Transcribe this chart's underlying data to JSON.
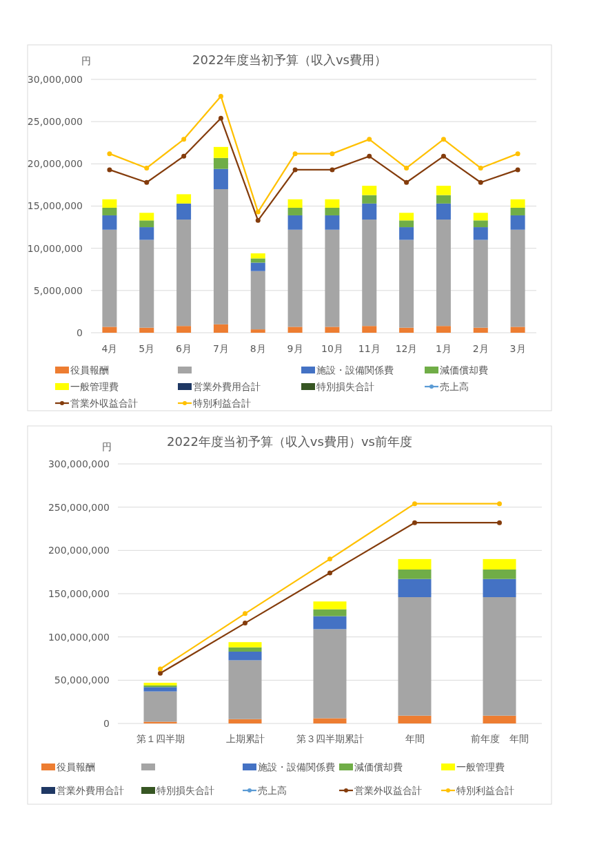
{
  "chart_data": [
    {
      "type": "bar",
      "title": "2022年度当初予算（収入vs費用）",
      "ylabel": "円",
      "stacked": true,
      "grid": "y",
      "legend": "bottom",
      "marker": "circle",
      "categories": [
        "4月",
        "5月",
        "6月",
        "7月",
        "8月",
        "9月",
        "10月",
        "11月",
        "12月",
        "1月",
        "2月",
        "3月"
      ],
      "ylim": [
        0,
        30000000
      ],
      "yticks": [
        0,
        {
          "value": 5000000,
          "label": "5,000,000"
        },
        {
          "value": 10000000,
          "label": "10,000,000"
        },
        {
          "value": 15000000,
          "label": "15,000,000"
        },
        {
          "value": 20000000,
          "label": "20,000,000"
        },
        {
          "value": 25000000,
          "label": "25,000,000"
        },
        {
          "value": 30000000,
          "label": "30,000,000"
        }
      ],
      "series": [
        {
          "name": "役員報酬",
          "color": "#ed7d31",
          "values": [
            700000,
            600000,
            800000,
            1000000,
            400000,
            700000,
            700000,
            800000,
            600000,
            800000,
            600000,
            700000
          ]
        },
        {
          "color": "#a5a5a5",
          "values": [
            11500000,
            10400000,
            12600000,
            16000000,
            6900000,
            11500000,
            11500000,
            12600000,
            10400000,
            12600000,
            10400000,
            11500000
          ]
        },
        {
          "name": "施設・設備関係費",
          "color": "#4472c4",
          "values": [
            1700000,
            1500000,
            1900000,
            2400000,
            1000000,
            1700000,
            1700000,
            1900000,
            1500000,
            1900000,
            1500000,
            1700000
          ]
        },
        {
          "name": "減価償却費",
          "color": "#70ad47",
          "values": [
            900000,
            800000,
            0,
            1300000,
            500000,
            900000,
            900000,
            1000000,
            800000,
            1000000,
            800000,
            900000
          ]
        },
        {
          "name": "一般管理費",
          "color": "#ffff00",
          "values": [
            1000000,
            900000,
            1100000,
            1300000,
            600000,
            1000000,
            1000000,
            1100000,
            900000,
            1100000,
            900000,
            1000000
          ]
        },
        {
          "name": "営業外費用合計",
          "color": "#1f3864",
          "values": [
            null,
            null,
            null,
            null,
            null,
            null,
            null,
            null,
            null,
            null,
            null,
            null
          ]
        },
        {
          "name": "特別損失合計",
          "color": "#375623",
          "values": [
            null,
            null,
            null,
            null,
            null,
            null,
            null,
            null,
            null,
            null,
            null,
            null
          ]
        },
        {
          "name": "売上高",
          "type": "line",
          "color": "#5b9bd5",
          "values": [
            null,
            null,
            null,
            null,
            null,
            null,
            null,
            null,
            null,
            null,
            null,
            null
          ]
        },
        {
          "name": "営業外収益合計",
          "type": "line",
          "color": "#843c0c",
          "values": [
            19300000,
            17800000,
            20900000,
            25400000,
            13300000,
            19300000,
            19300000,
            20900000,
            17800000,
            20900000,
            17800000,
            19300000
          ]
        },
        {
          "name": "特別利益合計",
          "type": "line",
          "color": "#ffc000",
          "values": [
            21200000,
            19500000,
            22900000,
            28000000,
            14300000,
            21200000,
            21200000,
            22900000,
            19500000,
            22900000,
            19500000,
            21200000
          ]
        }
      ]
    },
    {
      "type": "bar",
      "title": "2022年度当初予算（収入vs費用）vs前年度",
      "ylabel": "円",
      "stacked": true,
      "grid": "y",
      "legend": "bottom",
      "marker": "circle",
      "categories": [
        "第１四半期",
        "上期累計",
        "第３四半期累計",
        "年間",
        "前年度　年間"
      ],
      "ylim": [
        0,
        300000000
      ],
      "yticks": [
        0,
        {
          "value": 50000000,
          "label": "50,000,000"
        },
        {
          "value": 100000000,
          "label": "100,000,000"
        },
        {
          "value": 150000000,
          "label": "150,000,000"
        },
        {
          "value": 200000000,
          "label": "200,000,000"
        },
        {
          "value": 250000000,
          "label": "250,000,000"
        },
        {
          "value": 300000000,
          "label": "300,000,000"
        }
      ],
      "series": [
        {
          "name": "役員報酬",
          "color": "#ed7d31",
          "values": [
            2000000,
            5000000,
            6000000,
            9000000,
            9000000
          ]
        },
        {
          "color": "#a5a5a5",
          "values": [
            35000000,
            68000000,
            103000000,
            137000000,
            137000000
          ]
        },
        {
          "name": "施設・設備関係費",
          "color": "#4472c4",
          "values": [
            5000000,
            10000000,
            15000000,
            21000000,
            21000000
          ]
        },
        {
          "name": "減価償却費",
          "color": "#70ad47",
          "values": [
            2000000,
            5000000,
            8000000,
            11000000,
            11000000
          ]
        },
        {
          "name": "一般管理費",
          "color": "#ffff00",
          "values": [
            3000000,
            6000000,
            9000000,
            12000000,
            12000000
          ]
        },
        {
          "name": "営業外費用合計",
          "color": "#1f3864",
          "values": [
            null,
            null,
            null,
            null,
            null
          ]
        },
        {
          "name": "特別損失合計",
          "color": "#375623",
          "values": [
            null,
            null,
            null,
            null,
            null
          ]
        },
        {
          "name": "売上高",
          "type": "line",
          "color": "#5b9bd5",
          "values": [
            null,
            null,
            null,
            null,
            null
          ]
        },
        {
          "name": "営業外収益合計",
          "type": "line",
          "color": "#843c0c",
          "values": [
            58000000,
            116000000,
            174000000,
            232000000,
            232000000
          ]
        },
        {
          "name": "特別利益合計",
          "type": "line",
          "color": "#ffc000",
          "values": [
            63000000,
            127000000,
            190000000,
            254000000,
            254000000
          ]
        }
      ]
    }
  ]
}
